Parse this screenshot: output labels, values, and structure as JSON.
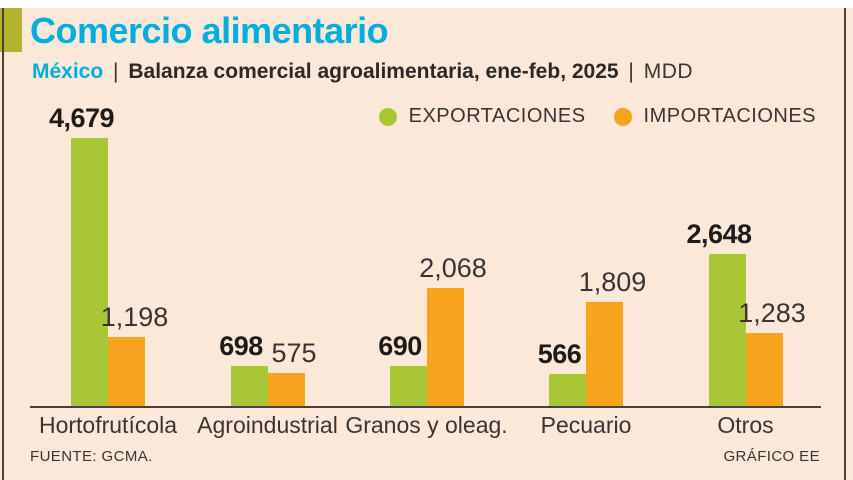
{
  "header": {
    "title": "Comercio alimentario",
    "country": "México",
    "sep1": "|",
    "subtitle": "Balanza comercial agroalimentaria, ene-feb, 2025",
    "sep2": "|",
    "unit": "MDD"
  },
  "legend": [
    {
      "label": "EXPORTACIONES",
      "color": "#a9c636"
    },
    {
      "label": "IMPORTACIONES",
      "color": "#f6a41d"
    }
  ],
  "chart_data": {
    "type": "bar",
    "title": "Comercio alimentario",
    "subtitle": "México | Balanza comercial agroalimentaria, ene-feb, 2025 | MDD",
    "unit": "MDD",
    "categories": [
      "Hortofrutícola",
      "Agroindustrial",
      "Granos y oleag.",
      "Pecuario",
      "Otros"
    ],
    "series": [
      {
        "name": "EXPORTACIONES",
        "color": "#a9c636",
        "values": [
          4679,
          698,
          690,
          566,
          2648
        ],
        "labels": [
          "4,679",
          "698",
          "690",
          "566",
          "2,648"
        ]
      },
      {
        "name": "IMPORTACIONES",
        "color": "#f6a41d",
        "values": [
          1198,
          575,
          2068,
          1809,
          1283
        ],
        "labels": [
          "1,198",
          "575",
          "2,068",
          "1,809",
          "1,283"
        ]
      }
    ],
    "ylim": [
      0,
      4679
    ],
    "grid": false,
    "legend_position": "top-right",
    "colors": {
      "background": "#fce8d8",
      "accent_square": "#b4b42c",
      "title": "#00aedd",
      "text": "#3a3331",
      "axis": "#46413b"
    }
  },
  "footer": {
    "source": "FUENTE: GCMA.",
    "credit": "GRÁFICO EE"
  }
}
